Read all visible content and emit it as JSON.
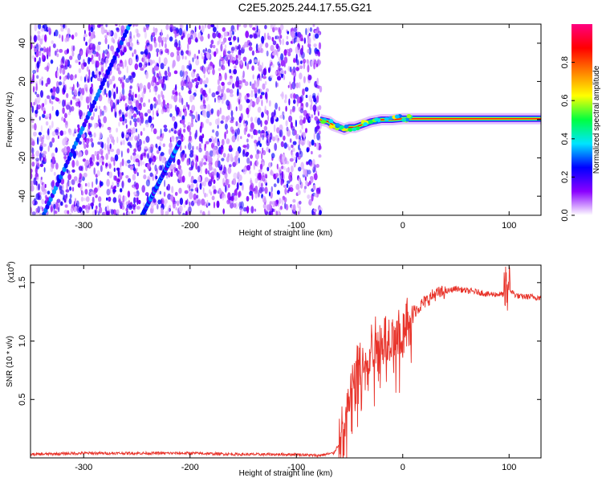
{
  "title": "C2E5.2025.244.17.55.G21",
  "chart_data": [
    {
      "type": "heatmap",
      "xlabel": "Height of straight line (km)",
      "ylabel": "Frequency (Hz)",
      "xlim": [
        -350,
        130
      ],
      "ylim": [
        -50,
        50
      ],
      "xticks": [
        -300,
        -200,
        -100,
        0,
        100
      ],
      "yticks": [
        -40,
        -20,
        0,
        20,
        40
      ],
      "noise_region": [
        -350,
        -77
      ],
      "features": [
        {
          "kind": "diagonal-streak",
          "x": [
            -350,
            -255
          ],
          "y": [
            -65,
            52
          ]
        },
        {
          "kind": "diagonal-streak",
          "x": [
            -245,
            -210
          ],
          "y": [
            -50,
            -12
          ]
        },
        {
          "kind": "ridge",
          "x": [
            -78,
            -70,
            -65,
            -60,
            -55,
            -50,
            -45,
            -40,
            -35,
            -30,
            -20,
            -10,
            0,
            20,
            60,
            100,
            130
          ],
          "y": [
            0,
            -1,
            -3,
            -4,
            -5,
            -4,
            -4,
            -3,
            -2,
            -1,
            0,
            0,
            0.5,
            0.5,
            0.5,
            0.5,
            0.5
          ]
        }
      ],
      "colorbar": {
        "label": "Normalized spectral amplitude",
        "ticks": [
          0.0,
          0.2,
          0.4,
          0.6,
          0.8
        ],
        "range": [
          0,
          1
        ],
        "colors": [
          "#ffffff",
          "#8a00ff",
          "#0000ff",
          "#00e5ff",
          "#00ff40",
          "#ffff00",
          "#ff8000",
          "#ff0000",
          "#ff0080"
        ]
      }
    },
    {
      "type": "line",
      "xlabel": "Height of straight line (km)",
      "ylabel": "SNR (10 * v/v)",
      "scale_label": "(x10",
      "scale_exp": "4",
      "scale_close": ")",
      "xlim": [
        -350,
        130
      ],
      "ylim": [
        0,
        1.65
      ],
      "xticks": [
        -300,
        -200,
        -100,
        0,
        100
      ],
      "yticks": [
        0.5,
        1.0,
        1.5
      ],
      "ytick_labels": [
        "0.5",
        "1.0",
        "1.5"
      ],
      "color": "#e8332a",
      "x": [
        -350,
        -300,
        -250,
        -200,
        -150,
        -100,
        -80,
        -65,
        -60,
        -55,
        -50,
        -45,
        -40,
        -35,
        -30,
        -25,
        -20,
        -15,
        -10,
        -5,
        0,
        5,
        10,
        20,
        30,
        40,
        50,
        60,
        70,
        80,
        90,
        95,
        100,
        105,
        110,
        120,
        130
      ],
      "y": [
        0.03,
        0.04,
        0.04,
        0.04,
        0.03,
        0.03,
        0.02,
        0.04,
        0.12,
        0.35,
        0.55,
        0.75,
        0.85,
        0.9,
        0.95,
        1.0,
        1.0,
        1.05,
        1.05,
        1.05,
        1.1,
        1.18,
        1.25,
        1.33,
        1.4,
        1.42,
        1.45,
        1.43,
        1.42,
        1.4,
        1.4,
        1.4,
        1.45,
        1.4,
        1.38,
        1.38,
        1.37
      ]
    }
  ]
}
